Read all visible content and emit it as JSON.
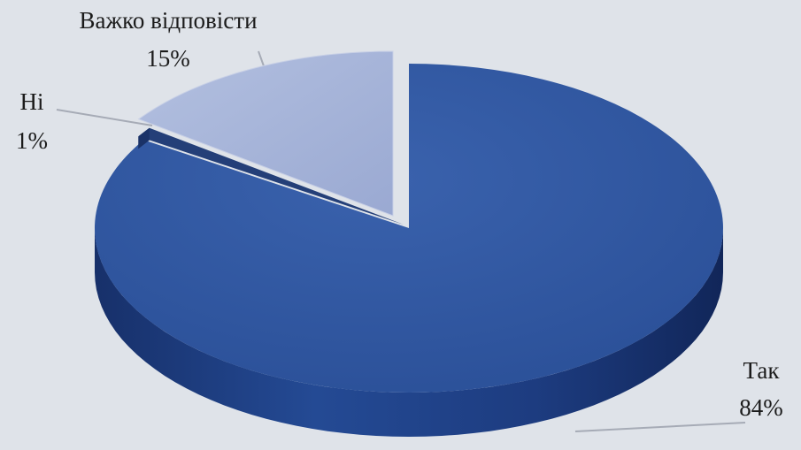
{
  "chart_data": {
    "type": "pie",
    "style": "3d-exploded",
    "slices": [
      {
        "label": "Так",
        "value": 84,
        "value_label": "84%",
        "color": "#2f56a0"
      },
      {
        "label": "Ні",
        "value": 1,
        "value_label": "1%",
        "color": "#243f78"
      },
      {
        "label": "Важко відповісти",
        "value": 15,
        "value_label": "15%",
        "color": "#a5b3d8"
      }
    ]
  }
}
